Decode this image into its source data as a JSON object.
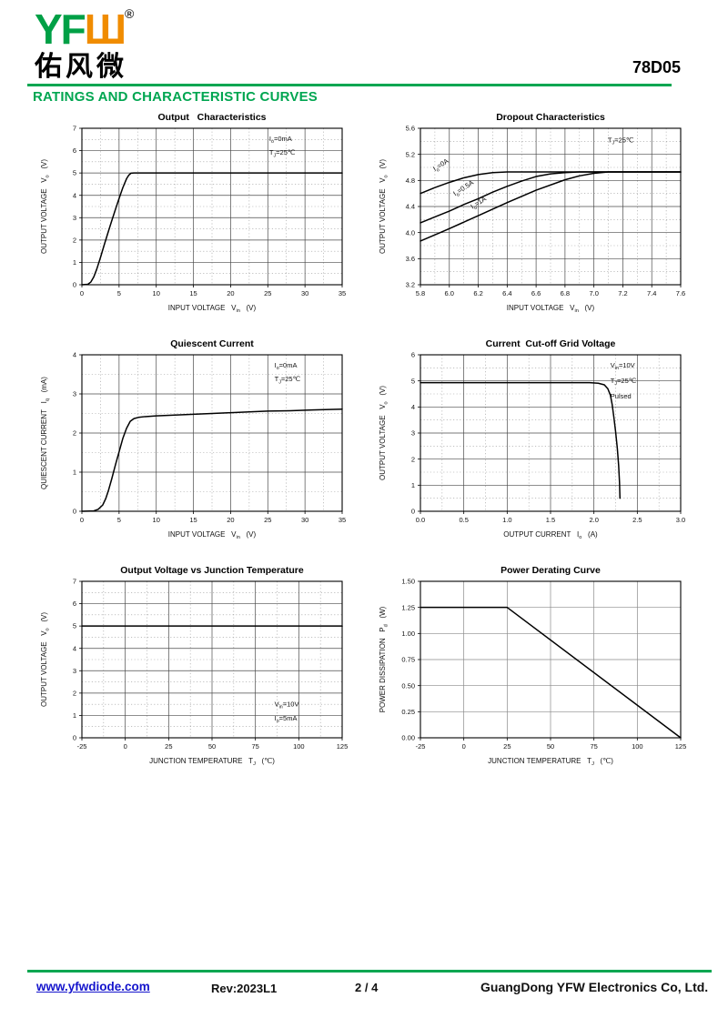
{
  "theme": {
    "accent_green": "#00a651",
    "logo_green": "#00a046",
    "logo_orange": "#f08c00",
    "link_blue": "#1414cc",
    "text_black": "#111111"
  },
  "header": {
    "logo_latin": "YF",
    "logo_glyph": "Ш",
    "registered_mark": "®",
    "logo_chinese": "佑风微",
    "part_number": "78D05",
    "section_title": "RATINGS AND CHARACTERISTIC CURVES"
  },
  "footer": {
    "website": "www.yfwdiode.com",
    "revision": "Rev:2023L1",
    "page_indicator": "2 / 4",
    "company": "GuangDong YFW Electronics Co, Ltd."
  },
  "chart_data": [
    {
      "type": "line",
      "title": "Output   Characteristics",
      "xlabel": [
        {
          "t": "INPUT VOLTAGE   V"
        },
        {
          "sub": "in"
        },
        {
          "t": "   (V)"
        }
      ],
      "ylabel": [
        {
          "t": "OUTPUT VOLTAGE   V"
        },
        {
          "sub": "o"
        },
        {
          "t": "   (V)"
        }
      ],
      "xlim": [
        0,
        35
      ],
      "ylim": [
        0,
        7
      ],
      "xticks": [
        0,
        5,
        10,
        15,
        20,
        25,
        30,
        35
      ],
      "xtick_labels": [
        "0",
        "5",
        "10",
        "15",
        "20",
        "25",
        "30",
        "35"
      ],
      "yticks": [
        0,
        1,
        2,
        3,
        4,
        5,
        6,
        7
      ],
      "ytick_labels": [
        "0",
        "1",
        "2",
        "3",
        "4",
        "5",
        "6",
        "7"
      ],
      "minor_grid": true,
      "grid_color": "#4a4a4a",
      "annotations": [
        {
          "fx": 0.72,
          "fy": 0.08,
          "segments": [
            {
              "t": "I"
            },
            {
              "sub": "o"
            },
            {
              "t": "=0mA"
            }
          ]
        },
        {
          "fx": 0.72,
          "fy": 0.17,
          "segments": [
            {
              "t": "T"
            },
            {
              "sub": "J"
            },
            {
              "t": "=25℃"
            }
          ]
        }
      ],
      "series": [
        {
          "name": "Vout vs Vin",
          "points": [
            [
              0,
              0
            ],
            [
              0.8,
              0.02
            ],
            [
              1.2,
              0.12
            ],
            [
              1.6,
              0.35
            ],
            [
              2,
              0.7
            ],
            [
              2.5,
              1.22
            ],
            [
              3,
              1.78
            ],
            [
              3.5,
              2.32
            ],
            [
              4,
              2.85
            ],
            [
              4.5,
              3.36
            ],
            [
              5,
              3.86
            ],
            [
              5.5,
              4.34
            ],
            [
              6,
              4.74
            ],
            [
              6.3,
              4.9
            ],
            [
              6.6,
              4.99
            ],
            [
              7,
              5
            ],
            [
              35,
              5
            ]
          ]
        }
      ]
    },
    {
      "type": "line",
      "title": "Dropout Characteristics",
      "xlabel": [
        {
          "t": "INPUT VOLTAGE   V"
        },
        {
          "sub": "in"
        },
        {
          "t": "   (V)"
        }
      ],
      "ylabel": [
        {
          "t": "OUTPUT VOLTAGE   V"
        },
        {
          "sub": "o"
        },
        {
          "t": "   (V)"
        }
      ],
      "xlim": [
        5.8,
        7.6
      ],
      "ylim": [
        3.2,
        5.6
      ],
      "xticks": [
        5.8,
        6.0,
        6.2,
        6.4,
        6.6,
        6.8,
        7.0,
        7.2,
        7.4,
        7.6
      ],
      "xtick_labels": [
        "5.8",
        "6.0",
        "6.2",
        "6.4",
        "6.6",
        "6.8",
        "7.0",
        "7.2",
        "7.4",
        "7.6"
      ],
      "yticks": [
        3.2,
        3.6,
        4.0,
        4.4,
        4.8,
        5.2,
        5.6
      ],
      "ytick_labels": [
        "3.2",
        "3.6",
        "4.0",
        "4.4",
        "4.8",
        "5.2",
        "5.6"
      ],
      "minor_grid": true,
      "grid_color": "#4a4a4a",
      "annotations": [
        {
          "fx": 0.72,
          "fy": 0.09,
          "segments": [
            {
              "t": "T"
            },
            {
              "sub": "J"
            },
            {
              "t": "=25℃"
            }
          ]
        }
      ],
      "series": [
        {
          "name": "Io=0A",
          "points": [
            [
              5.8,
              4.6
            ],
            [
              5.9,
              4.69
            ],
            [
              6.0,
              4.77
            ],
            [
              6.1,
              4.84
            ],
            [
              6.2,
              4.89
            ],
            [
              6.3,
              4.92
            ],
            [
              6.4,
              4.93
            ],
            [
              7.6,
              4.93
            ]
          ],
          "label": {
            "x": 5.9,
            "y": 4.94,
            "rotate": -33,
            "segments": [
              {
                "t": "I"
              },
              {
                "sub": "o"
              },
              {
                "t": "=0A"
              }
            ]
          }
        },
        {
          "name": "Io=0.5A",
          "points": [
            [
              5.8,
              4.15
            ],
            [
              5.9,
              4.24
            ],
            [
              6.0,
              4.33
            ],
            [
              6.1,
              4.43
            ],
            [
              6.2,
              4.52
            ],
            [
              6.3,
              4.62
            ],
            [
              6.4,
              4.71
            ],
            [
              6.5,
              4.79
            ],
            [
              6.6,
              4.86
            ],
            [
              6.7,
              4.9
            ],
            [
              6.8,
              4.92
            ],
            [
              6.9,
              4.93
            ],
            [
              7.6,
              4.93
            ]
          ],
          "label": {
            "x": 6.04,
            "y": 4.56,
            "rotate": -33,
            "segments": [
              {
                "t": "I"
              },
              {
                "sub": "o"
              },
              {
                "t": "=0.5A"
              }
            ]
          }
        },
        {
          "name": "Io=1A",
          "points": [
            [
              5.8,
              3.87
            ],
            [
              6.0,
              4.06
            ],
            [
              6.2,
              4.26
            ],
            [
              6.4,
              4.46
            ],
            [
              6.6,
              4.65
            ],
            [
              6.8,
              4.81
            ],
            [
              6.9,
              4.87
            ],
            [
              7.0,
              4.91
            ],
            [
              7.1,
              4.93
            ],
            [
              7.6,
              4.93
            ]
          ],
          "label": {
            "x": 6.16,
            "y": 4.36,
            "rotate": -33,
            "segments": [
              {
                "t": "I"
              },
              {
                "sub": "o"
              },
              {
                "t": "=1A"
              }
            ]
          }
        }
      ]
    },
    {
      "type": "line",
      "title": "Quiescent Current",
      "xlabel": [
        {
          "t": "INPUT VOLTAGE   V"
        },
        {
          "sub": "in"
        },
        {
          "t": "   (V)"
        }
      ],
      "ylabel": [
        {
          "t": "QUIESCENT CURRENT   I"
        },
        {
          "sub": "q"
        },
        {
          "t": "   (mA)"
        }
      ],
      "xlim": [
        0,
        35
      ],
      "ylim": [
        0,
        4
      ],
      "xticks": [
        0,
        5,
        10,
        15,
        20,
        25,
        30,
        35
      ],
      "xtick_labels": [
        "0",
        "5",
        "10",
        "15",
        "20",
        "25",
        "30",
        "35"
      ],
      "yticks": [
        0,
        1,
        2,
        3,
        4
      ],
      "ytick_labels": [
        "0",
        "1",
        "2",
        "3",
        "4"
      ],
      "minor_grid": true,
      "grid_color": "#4a4a4a",
      "annotations": [
        {
          "fx": 0.74,
          "fy": 0.08,
          "segments": [
            {
              "t": "I"
            },
            {
              "sub": "o"
            },
            {
              "t": "=0mA"
            }
          ]
        },
        {
          "fx": 0.74,
          "fy": 0.17,
          "segments": [
            {
              "t": "T"
            },
            {
              "sub": "J"
            },
            {
              "t": "=25℃"
            }
          ]
        }
      ],
      "series": [
        {
          "name": "Iq vs Vin",
          "points": [
            [
              0,
              0
            ],
            [
              1.6,
              0.01
            ],
            [
              2.2,
              0.05
            ],
            [
              2.8,
              0.16
            ],
            [
              3.2,
              0.32
            ],
            [
              3.6,
              0.55
            ],
            [
              4,
              0.82
            ],
            [
              4.5,
              1.18
            ],
            [
              5,
              1.52
            ],
            [
              5.5,
              1.86
            ],
            [
              6,
              2.12
            ],
            [
              6.5,
              2.3
            ],
            [
              7,
              2.37
            ],
            [
              7.6,
              2.4
            ],
            [
              8.5,
              2.42
            ],
            [
              10,
              2.44
            ],
            [
              12.5,
              2.46
            ],
            [
              15,
              2.48
            ],
            [
              17.5,
              2.5
            ],
            [
              20,
              2.52
            ],
            [
              22.5,
              2.54
            ],
            [
              25,
              2.56
            ],
            [
              28,
              2.57
            ],
            [
              31,
              2.59
            ],
            [
              35,
              2.61
            ]
          ]
        }
      ]
    },
    {
      "type": "line",
      "title": "Current  Cut-off Grid Voltage",
      "xlabel": [
        {
          "t": "OUTPUT CURRENT   I"
        },
        {
          "sub": "o"
        },
        {
          "t": "   (A)"
        }
      ],
      "ylabel": [
        {
          "t": "OUTPUT VOLTAGE   V"
        },
        {
          "sub": "o"
        },
        {
          "t": "   (V)"
        }
      ],
      "xlim": [
        0,
        3
      ],
      "ylim": [
        0,
        6
      ],
      "xticks": [
        0,
        0.5,
        1.0,
        1.5,
        2.0,
        2.5,
        3.0
      ],
      "xtick_labels": [
        "0.0",
        "0.5",
        "1.0",
        "1.5",
        "2.0",
        "2.5",
        "3.0"
      ],
      "yticks": [
        0,
        1,
        2,
        3,
        4,
        5,
        6
      ],
      "ytick_labels": [
        "0",
        "1",
        "2",
        "3",
        "4",
        "5",
        "6"
      ],
      "minor_grid": true,
      "grid_color": "#4a4a4a",
      "annotations": [
        {
          "fx": 0.73,
          "fy": 0.08,
          "segments": [
            {
              "t": "V"
            },
            {
              "sub": "in"
            },
            {
              "t": "=10V"
            }
          ]
        },
        {
          "fx": 0.73,
          "fy": 0.18,
          "segments": [
            {
              "t": "T"
            },
            {
              "sub": "J"
            },
            {
              "t": "=25℃"
            }
          ]
        },
        {
          "fx": 0.73,
          "fy": 0.28,
          "segments": [
            {
              "t": "Pulsed"
            }
          ]
        }
      ],
      "series": [
        {
          "name": "Vout vs Io",
          "points": [
            [
              0,
              4.93
            ],
            [
              1.5,
              4.93
            ],
            [
              1.95,
              4.93
            ],
            [
              2.05,
              4.91
            ],
            [
              2.12,
              4.85
            ],
            [
              2.16,
              4.7
            ],
            [
              2.19,
              4.45
            ],
            [
              2.21,
              4.1
            ],
            [
              2.23,
              3.6
            ],
            [
              2.25,
              3.05
            ],
            [
              2.27,
              2.4
            ],
            [
              2.285,
              1.75
            ],
            [
              2.295,
              1.1
            ],
            [
              2.3,
              0.5
            ]
          ]
        }
      ]
    },
    {
      "type": "line",
      "title": "Output Voltage vs Junction Temperature",
      "xlabel": [
        {
          "t": "JUNCTION TEMPERATURE   T"
        },
        {
          "sub": "J"
        },
        {
          "t": "   (℃)"
        }
      ],
      "ylabel": [
        {
          "t": "OUTPUT VOLTAGE   V"
        },
        {
          "sub": "o"
        },
        {
          "t": "   (V)"
        }
      ],
      "xlim": [
        -25,
        125
      ],
      "ylim": [
        0,
        7
      ],
      "xticks": [
        -25,
        0,
        25,
        50,
        75,
        100,
        125
      ],
      "xtick_labels": [
        "-25",
        "0",
        "25",
        "50",
        "75",
        "100",
        "125"
      ],
      "yticks": [
        0,
        1,
        2,
        3,
        4,
        5,
        6,
        7
      ],
      "ytick_labels": [
        "0",
        "1",
        "2",
        "3",
        "4",
        "5",
        "6",
        "7"
      ],
      "minor_grid": true,
      "grid_color": "#4a4a4a",
      "annotations": [
        {
          "fx": 0.74,
          "fy": 0.8,
          "segments": [
            {
              "t": "V"
            },
            {
              "sub": "in"
            },
            {
              "t": "=10V"
            }
          ]
        },
        {
          "fx": 0.74,
          "fy": 0.89,
          "segments": [
            {
              "t": "I"
            },
            {
              "sub": "o"
            },
            {
              "t": "=5mA"
            }
          ]
        }
      ],
      "series": [
        {
          "name": "Vout vs Tj",
          "points": [
            [
              -25,
              5
            ],
            [
              125,
              5
            ]
          ]
        }
      ]
    },
    {
      "type": "line",
      "title": "Power Derating Curve",
      "xlabel": [
        {
          "t": "JUNCTION TEMPERATURE   T"
        },
        {
          "sub": "J"
        },
        {
          "t": "   (℃)"
        }
      ],
      "ylabel": [
        {
          "t": "POWER DISSIPATION   P"
        },
        {
          "sub": "d"
        },
        {
          "t": "   (W)"
        }
      ],
      "xlim": [
        -25,
        125
      ],
      "ylim": [
        0,
        1.5
      ],
      "xticks": [
        -25,
        0,
        25,
        50,
        75,
        100,
        125
      ],
      "xtick_labels": [
        "-25",
        "0",
        "25",
        "50",
        "75",
        "100",
        "125"
      ],
      "yticks": [
        0,
        0.25,
        0.5,
        0.75,
        1.0,
        1.25,
        1.5
      ],
      "ytick_labels": [
        "0.00",
        "0.25",
        "0.50",
        "0.75",
        "1.00",
        "1.25",
        "1.50"
      ],
      "minor_grid": false,
      "grid_color": "#8a8a8a",
      "annotations": [],
      "series": [
        {
          "name": "Pd vs Tj",
          "points": [
            [
              -25,
              1.25
            ],
            [
              25,
              1.25
            ],
            [
              125,
              0
            ]
          ]
        }
      ]
    }
  ]
}
